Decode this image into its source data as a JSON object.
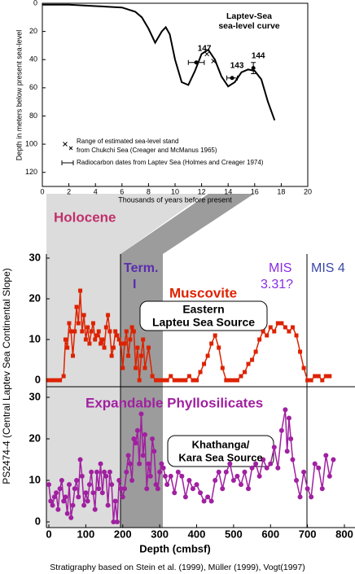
{
  "chart_data": [
    {
      "type": "line",
      "title_lines": [
        "Laptev-Sea",
        "sea-level curve"
      ],
      "xlabel": "Thousands of years before present",
      "ylabel": "Depth in meters below present sea-level",
      "xlim": [
        0,
        20
      ],
      "ylim": [
        0,
        130
      ],
      "y_inverted": true,
      "xticks": [
        0,
        2,
        4,
        6,
        8,
        10,
        12,
        14,
        16,
        18,
        20
      ],
      "yticks": [
        0,
        20,
        40,
        60,
        80,
        100,
        120
      ],
      "color": "#000000",
      "x": [
        0,
        2,
        4,
        6,
        7,
        7.5,
        8,
        8.5,
        9,
        9.3,
        9.6,
        10,
        10.5,
        11,
        11.5,
        12,
        12.5,
        13,
        13.5,
        14,
        14.5,
        15,
        15.5,
        16,
        16.5,
        17,
        17.5
      ],
      "values": [
        1,
        1,
        2,
        3,
        6,
        10,
        18,
        28,
        20,
        17,
        22,
        40,
        56,
        58,
        48,
        36,
        33,
        40,
        52,
        59,
        56,
        49,
        47,
        48,
        54,
        70,
        83
      ],
      "markers": [
        {
          "name_lines": [
            "Range of estimated sea-level stand",
            "from Chukchi Sea (Creager  and McManus 1965)"
          ],
          "marker": "x",
          "x": [
            12.4,
            12.9
          ],
          "values": [
            36,
            41
          ]
        },
        {
          "name_lines": [
            "Radiocarbon dates from Laptev Sea (Holmes and Creager 1974)"
          ],
          "marker": "errorbar",
          "x": [
            11.6,
            14.3,
            15.9
          ],
          "values": [
            42,
            53,
            46
          ],
          "xerr": [
            0.6,
            0.4,
            0
          ],
          "yerr": [
            0,
            0,
            4
          ],
          "labels": [
            "147",
            "143",
            "144"
          ]
        }
      ]
    },
    {
      "type": "line",
      "name": "Muscovite",
      "color": "#dd2200",
      "marker": "square",
      "xlim": [
        0,
        800
      ],
      "ylim": [
        0,
        30
      ],
      "yticks": [
        0,
        10,
        20,
        30
      ],
      "annotations": [
        "Holocene",
        "Term.",
        "I",
        "MIS",
        "3.31?",
        "MIS 4",
        "Eastern",
        "Lapteu Sea Source"
      ],
      "x": [
        0,
        10,
        20,
        30,
        40,
        45,
        50,
        55,
        60,
        65,
        70,
        75,
        80,
        85,
        90,
        95,
        100,
        105,
        110,
        115,
        120,
        125,
        130,
        135,
        140,
        145,
        150,
        155,
        160,
        165,
        170,
        175,
        180,
        185,
        190,
        195,
        200,
        205,
        210,
        215,
        220,
        225,
        230,
        235,
        240,
        245,
        250,
        255,
        260,
        270,
        280,
        290,
        300,
        310,
        320,
        330,
        340,
        350,
        360,
        370,
        380,
        390,
        400,
        410,
        420,
        430,
        440,
        450,
        460,
        470,
        480,
        490,
        500,
        510,
        520,
        530,
        540,
        550,
        560,
        570,
        580,
        590,
        600,
        610,
        620,
        630,
        640,
        650,
        660,
        670,
        680,
        690,
        700,
        710,
        720,
        730,
        740,
        750,
        760
      ],
      "values": [
        0,
        0,
        0,
        0,
        1,
        10,
        8,
        14,
        12,
        6,
        12,
        18,
        14,
        22,
        12,
        16,
        10,
        13,
        9,
        12,
        14,
        10,
        11,
        12,
        9,
        10,
        8,
        13,
        16,
        12,
        6,
        8,
        12,
        11,
        10,
        9,
        3,
        9,
        12,
        6,
        10,
        13,
        12,
        3,
        8,
        0,
        6,
        10,
        3,
        8,
        1,
        0,
        0,
        0,
        0,
        1,
        0,
        0,
        0,
        0,
        1,
        0,
        0,
        2,
        4,
        6,
        9,
        11,
        8,
        3,
        0,
        0,
        0,
        0,
        1,
        2,
        4,
        5,
        7,
        10,
        12,
        11,
        13,
        12,
        14,
        14,
        13,
        12,
        13,
        11,
        7,
        3,
        0,
        0,
        1,
        1,
        0,
        1,
        1
      ]
    },
    {
      "type": "line",
      "name": "Expandable Phyllosilicates",
      "color": "#a020a0",
      "marker": "circle",
      "xlim": [
        0,
        800
      ],
      "ylim": [
        0,
        30
      ],
      "yticks": [
        0,
        10,
        20,
        30
      ],
      "xticks": [
        0,
        100,
        200,
        300,
        400,
        500,
        600,
        700,
        800
      ],
      "xlabel": "Depth (cmbsf)",
      "ylabel": "PS2474-4 (Central Laptev Sea Continental Slope)",
      "annotations": [
        "Khathanga/",
        "Kara Sea Source"
      ],
      "x": [
        0,
        5,
        10,
        15,
        20,
        25,
        30,
        35,
        40,
        45,
        50,
        55,
        60,
        65,
        70,
        75,
        80,
        85,
        90,
        95,
        100,
        105,
        110,
        115,
        120,
        125,
        130,
        135,
        140,
        145,
        150,
        155,
        160,
        165,
        170,
        175,
        180,
        185,
        190,
        195,
        200,
        205,
        210,
        215,
        220,
        225,
        230,
        235,
        240,
        245,
        250,
        255,
        260,
        265,
        270,
        275,
        280,
        285,
        290,
        295,
        300,
        305,
        310,
        315,
        320,
        330,
        340,
        350,
        360,
        370,
        380,
        390,
        400,
        410,
        420,
        430,
        440,
        450,
        460,
        470,
        480,
        490,
        500,
        510,
        520,
        530,
        540,
        550,
        560,
        570,
        580,
        590,
        600,
        610,
        620,
        630,
        640,
        645,
        650,
        655,
        660,
        670,
        680,
        690,
        700,
        710,
        720,
        730,
        740,
        750,
        760,
        770
      ],
      "values": [
        9,
        5,
        4,
        6,
        7,
        3,
        8,
        10,
        5,
        6,
        2,
        9,
        1,
        4,
        8,
        10,
        6,
        15,
        11,
        4,
        7,
        5,
        9,
        12,
        7,
        3,
        12,
        8,
        14,
        7,
        12,
        11,
        4,
        12,
        9,
        0,
        5,
        0,
        10,
        8,
        6,
        8,
        12,
        16,
        14,
        10,
        20,
        19,
        22,
        14,
        26,
        16,
        21,
        8,
        14,
        11,
        20,
        17,
        9,
        8,
        12,
        14,
        13,
        11,
        9,
        11,
        7,
        12,
        11,
        6,
        10,
        8,
        9,
        7,
        5,
        6,
        5,
        10,
        12,
        8,
        12,
        14,
        10,
        11,
        9,
        12,
        8,
        13,
        14,
        11,
        15,
        13,
        14,
        18,
        13,
        22,
        27,
        17,
        25,
        20,
        15,
        10,
        6,
        12,
        8,
        6,
        14,
        13,
        8,
        16,
        11,
        15
      ]
    }
  ],
  "footer": "Stratigraphy based on Stein et al. (1999), Müller (1999), Vogt(1997)"
}
